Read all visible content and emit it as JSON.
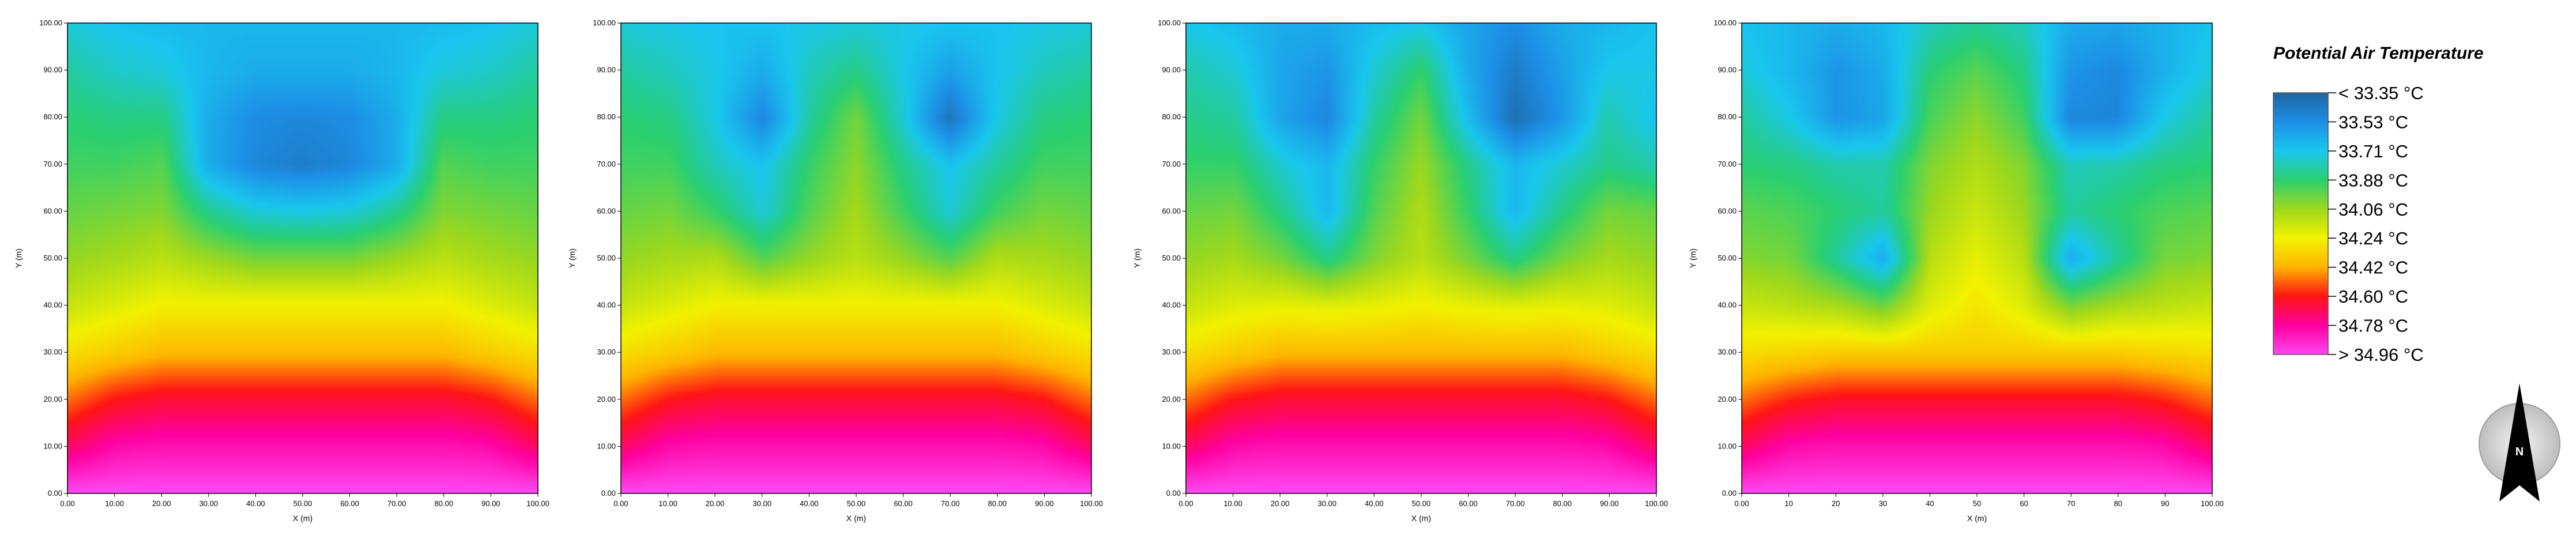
{
  "chart_data": [
    {
      "type": "heatmap",
      "title": "",
      "xlabel": "X (m)",
      "ylabel": "Y (m)",
      "xlim": [
        0,
        100
      ],
      "ylim": [
        0,
        100
      ],
      "xticks": [
        "0.00",
        "10.00",
        "20.00",
        "30.00",
        "40.00",
        "50.00",
        "60.00",
        "70.00",
        "80.00",
        "90.00",
        "100.00"
      ],
      "yticks": [
        "0.00",
        "10.00",
        "20.00",
        "30.00",
        "40.00",
        "50.00",
        "60.00",
        "70.00",
        "80.00",
        "90.00",
        "100.00"
      ],
      "field": [
        [
          34.96,
          34.96,
          34.96,
          34.96,
          34.96,
          34.96,
          34.96,
          34.96,
          34.96,
          34.96,
          34.96
        ],
        [
          34.7,
          34.8,
          34.82,
          34.82,
          34.82,
          34.82,
          34.82,
          34.82,
          34.82,
          34.8,
          34.7
        ],
        [
          34.5,
          34.6,
          34.64,
          34.64,
          34.64,
          34.64,
          34.64,
          34.64,
          34.64,
          34.6,
          34.5
        ],
        [
          34.3,
          34.35,
          34.4,
          34.4,
          34.4,
          34.4,
          34.4,
          34.4,
          34.4,
          34.35,
          34.3
        ],
        [
          34.15,
          34.2,
          34.25,
          34.25,
          34.25,
          34.25,
          34.25,
          34.25,
          34.25,
          34.2,
          34.15
        ],
        [
          34.05,
          34.08,
          34.12,
          34.06,
          34.0,
          34.0,
          34.0,
          34.06,
          34.12,
          34.08,
          34.05
        ],
        [
          33.98,
          34.0,
          34.02,
          33.84,
          33.74,
          33.72,
          33.74,
          33.84,
          34.02,
          34.0,
          33.98
        ],
        [
          33.92,
          33.92,
          33.95,
          33.62,
          33.5,
          33.46,
          33.5,
          33.62,
          33.95,
          33.92,
          33.92
        ],
        [
          33.88,
          33.86,
          33.86,
          33.62,
          33.52,
          33.5,
          33.52,
          33.62,
          33.86,
          33.86,
          33.88
        ],
        [
          33.82,
          33.76,
          33.74,
          33.66,
          33.62,
          33.62,
          33.62,
          33.66,
          33.74,
          33.76,
          33.82
        ],
        [
          33.74,
          33.7,
          33.68,
          33.66,
          33.66,
          33.66,
          33.66,
          33.66,
          33.68,
          33.7,
          33.74
        ]
      ]
    },
    {
      "type": "heatmap",
      "title": "",
      "xlabel": "X (m)",
      "ylabel": "Y (m)",
      "xlim": [
        0,
        100
      ],
      "ylim": [
        0,
        100
      ],
      "xticks": [
        "0.00",
        "10.00",
        "20.00",
        "30.00",
        "40.00",
        "50.00",
        "60.00",
        "70.00",
        "80.00",
        "90.00",
        "100.00"
      ],
      "yticks": [
        "0.00",
        "10.00",
        "20.00",
        "30.00",
        "40.00",
        "50.00",
        "60.00",
        "70.00",
        "80.00",
        "90.00",
        "100.00"
      ],
      "field": [
        [
          34.96,
          34.96,
          34.96,
          34.96,
          34.96,
          34.96,
          34.96,
          34.96,
          34.96,
          34.96,
          34.96
        ],
        [
          34.7,
          34.8,
          34.82,
          34.82,
          34.82,
          34.82,
          34.82,
          34.82,
          34.82,
          34.8,
          34.7
        ],
        [
          34.5,
          34.6,
          34.64,
          34.64,
          34.64,
          34.64,
          34.64,
          34.64,
          34.64,
          34.6,
          34.5
        ],
        [
          34.3,
          34.35,
          34.4,
          34.4,
          34.4,
          34.4,
          34.4,
          34.4,
          34.4,
          34.35,
          34.3
        ],
        [
          34.15,
          34.2,
          34.25,
          34.25,
          34.25,
          34.25,
          34.25,
          34.25,
          34.25,
          34.2,
          34.15
        ],
        [
          34.05,
          34.08,
          34.1,
          33.95,
          34.05,
          34.12,
          34.05,
          33.95,
          34.1,
          34.08,
          34.05
        ],
        [
          33.98,
          34.0,
          33.9,
          33.74,
          33.95,
          34.08,
          33.92,
          33.74,
          33.92,
          34.0,
          33.98
        ],
        [
          33.92,
          33.92,
          33.78,
          33.7,
          33.9,
          34.04,
          33.85,
          33.7,
          33.82,
          33.92,
          33.92
        ],
        [
          33.88,
          33.86,
          33.72,
          33.5,
          33.82,
          34.0,
          33.75,
          33.42,
          33.72,
          33.86,
          33.88
        ],
        [
          33.82,
          33.78,
          33.72,
          33.62,
          33.78,
          33.86,
          33.72,
          33.58,
          33.7,
          33.78,
          33.82
        ],
        [
          33.74,
          33.72,
          33.7,
          33.7,
          33.72,
          33.74,
          33.72,
          33.7,
          33.7,
          33.72,
          33.74
        ]
      ]
    },
    {
      "type": "heatmap",
      "title": "",
      "xlabel": "X (m)",
      "ylabel": "Y (m)",
      "xlim": [
        0,
        100
      ],
      "ylim": [
        0,
        100
      ],
      "xticks": [
        "0.00",
        "10.00",
        "20.00",
        "30.00",
        "40.00",
        "50.00",
        "60.00",
        "70.00",
        "80.00",
        "90.00",
        "100.00"
      ],
      "yticks": [
        "0.00",
        "10.00",
        "20.00",
        "30.00",
        "40.00",
        "50.00",
        "60.00",
        "70.00",
        "80.00",
        "90.00",
        "100.00"
      ],
      "field": [
        [
          34.96,
          34.96,
          34.96,
          34.96,
          34.96,
          34.96,
          34.96,
          34.96,
          34.96,
          34.96,
          34.96
        ],
        [
          34.7,
          34.8,
          34.82,
          34.82,
          34.82,
          34.82,
          34.82,
          34.82,
          34.82,
          34.8,
          34.7
        ],
        [
          34.5,
          34.6,
          34.64,
          34.64,
          34.64,
          34.64,
          34.64,
          34.64,
          34.64,
          34.6,
          34.5
        ],
        [
          34.3,
          34.35,
          34.4,
          34.4,
          34.4,
          34.4,
          34.4,
          34.4,
          34.4,
          34.35,
          34.3
        ],
        [
          34.15,
          34.2,
          34.22,
          34.2,
          34.22,
          34.25,
          34.22,
          34.2,
          34.22,
          34.2,
          34.15
        ],
        [
          34.05,
          34.08,
          34.0,
          33.85,
          34.02,
          34.12,
          34.0,
          33.85,
          34.0,
          34.08,
          34.05
        ],
        [
          33.98,
          34.0,
          33.85,
          33.66,
          33.95,
          34.1,
          33.9,
          33.66,
          33.85,
          34.0,
          33.98
        ],
        [
          33.9,
          33.9,
          33.75,
          33.66,
          33.9,
          34.06,
          33.85,
          33.66,
          33.75,
          33.85,
          33.8
        ],
        [
          33.85,
          33.82,
          33.6,
          33.5,
          33.82,
          34.0,
          33.68,
          33.4,
          33.55,
          33.8,
          33.7
        ],
        [
          33.8,
          33.75,
          33.6,
          33.55,
          33.75,
          33.9,
          33.62,
          33.45,
          33.58,
          33.72,
          33.72
        ],
        [
          33.72,
          33.68,
          33.62,
          33.62,
          33.68,
          33.72,
          33.6,
          33.52,
          33.62,
          33.66,
          33.7
        ]
      ]
    },
    {
      "type": "heatmap",
      "title": "",
      "xlabel": "X (m)",
      "ylabel": "Y (m)",
      "xlim": [
        0,
        100
      ],
      "ylim": [
        0,
        100
      ],
      "xticks": [
        "0.00",
        "10",
        "20",
        "30",
        "40",
        "50",
        "60",
        "70",
        "80",
        "90",
        "100.00"
      ],
      "yticks": [
        "0.00",
        "10.00",
        "20.00",
        "30.00",
        "40.00",
        "50.00",
        "60.00",
        "70.00",
        "80.00",
        "90.00",
        "100.00"
      ],
      "field": [
        [
          34.96,
          34.96,
          34.96,
          34.96,
          34.96,
          34.96,
          34.96,
          34.96,
          34.96,
          34.96,
          34.96
        ],
        [
          34.7,
          34.8,
          34.82,
          34.82,
          34.82,
          34.82,
          34.82,
          34.82,
          34.82,
          34.8,
          34.7
        ],
        [
          34.5,
          34.58,
          34.62,
          34.62,
          34.62,
          34.62,
          34.62,
          34.62,
          34.62,
          34.58,
          34.5
        ],
        [
          34.3,
          34.32,
          34.35,
          34.35,
          34.35,
          34.35,
          34.35,
          34.35,
          34.35,
          34.32,
          34.3
        ],
        [
          34.15,
          34.12,
          34.08,
          33.98,
          34.2,
          34.28,
          34.2,
          34.0,
          34.08,
          34.12,
          34.15
        ],
        [
          34.02,
          34.0,
          33.82,
          33.62,
          34.12,
          34.22,
          34.12,
          33.62,
          33.82,
          34.0,
          34.02
        ],
        [
          33.96,
          33.94,
          33.88,
          33.82,
          34.06,
          34.16,
          34.06,
          33.82,
          33.88,
          33.94,
          33.96
        ],
        [
          33.88,
          33.86,
          33.8,
          33.8,
          34.02,
          34.1,
          34.02,
          33.78,
          33.8,
          33.86,
          33.88
        ],
        [
          33.82,
          33.72,
          33.55,
          33.6,
          33.94,
          34.04,
          33.92,
          33.5,
          33.5,
          33.72,
          33.82
        ],
        [
          33.74,
          33.66,
          33.55,
          33.62,
          33.88,
          33.96,
          33.86,
          33.55,
          33.5,
          33.64,
          33.74
        ],
        [
          33.7,
          33.66,
          33.62,
          33.66,
          33.78,
          33.84,
          33.78,
          33.62,
          33.6,
          33.64,
          33.7
        ]
      ]
    }
  ],
  "legend": {
    "title": "Potential Air Temperature",
    "unit": "°C",
    "bins": [
      {
        "label": "< 33.35 °C",
        "color": "#1e64a0"
      },
      {
        "label": "33.53  °C",
        "color": "#1d8fe6"
      },
      {
        "label": "33.71  °C",
        "color": "#19c6ee"
      },
      {
        "label": "33.88  °C",
        "color": "#2bd070"
      },
      {
        "label": "34.06  °C",
        "color": "#9fd81c"
      },
      {
        "label": "34.24  °C",
        "color": "#f2f200"
      },
      {
        "label": "34.42  °C",
        "color": "#ffb400"
      },
      {
        "label": "34.60  °C",
        "color": "#ff1414"
      },
      {
        "label": "34.78  °C",
        "color": "#ff00a0"
      },
      {
        "label": "> 34.96 °C",
        "color": "#ff46f0"
      }
    ]
  },
  "north_arrow": {
    "label": "N"
  }
}
